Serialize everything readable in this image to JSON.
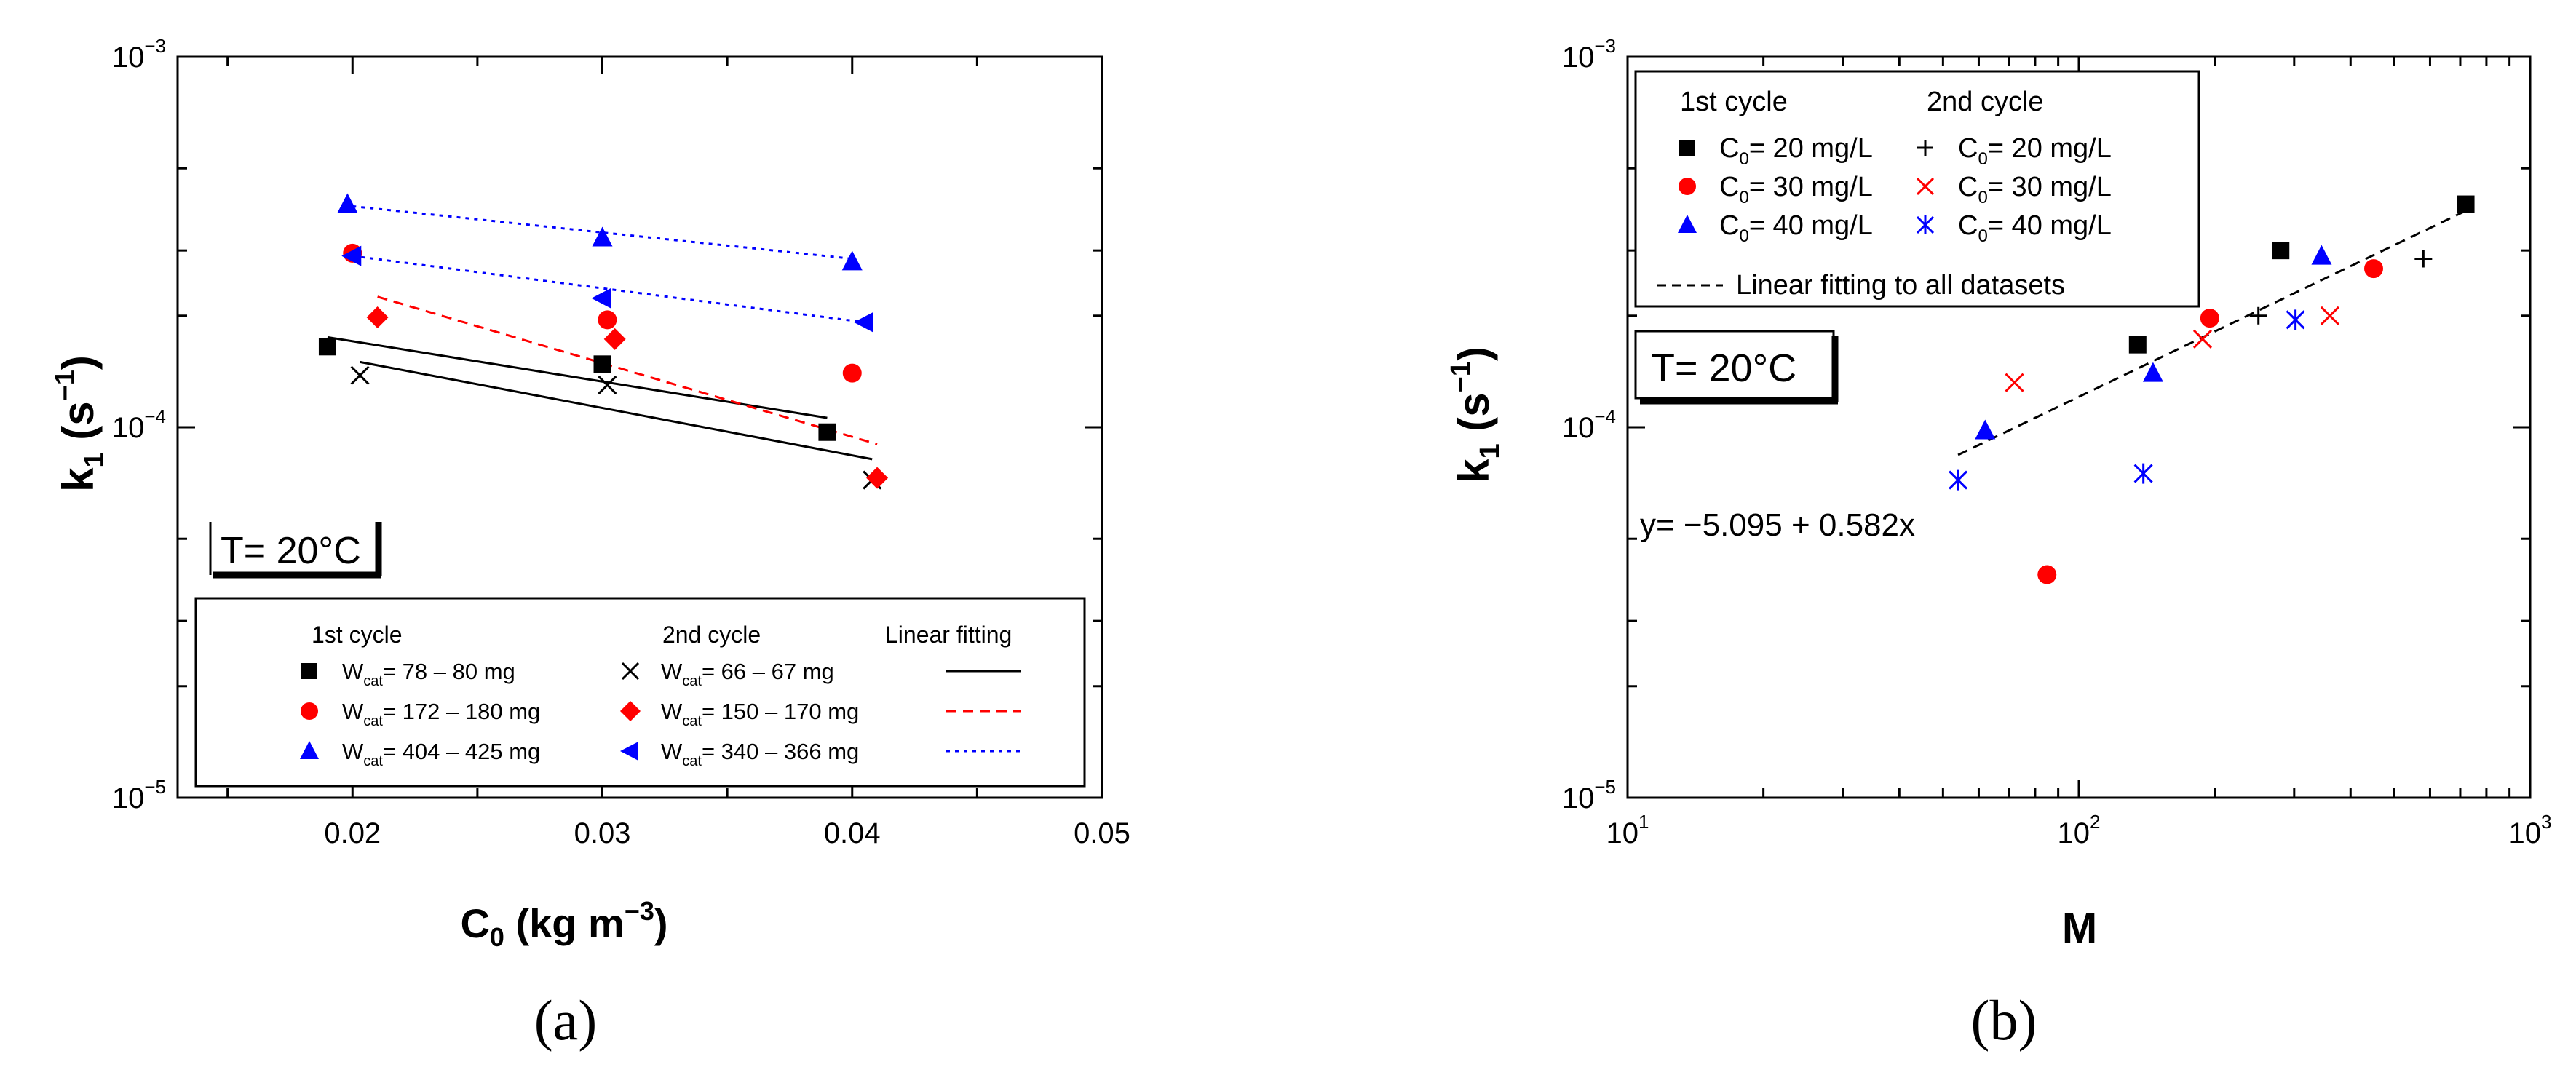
{
  "chart_data": [
    {
      "panel": "a",
      "caption": "(a)",
      "type": "scatter",
      "xscale": "linear",
      "yscale": "log",
      "xlabel_main": "C",
      "xlabel_sub": "0",
      "xlabel_rest": " (kg m",
      "xlabel_sup": "−3",
      "xlabel_end": ")",
      "ylabel_main": "k",
      "ylabel_sub": "1",
      "ylabel_rest": " (s",
      "ylabel_sup": "−1",
      "ylabel_end": ")",
      "xlim": [
        0.013,
        0.05
      ],
      "ylim": [
        1e-05,
        0.001
      ],
      "x_ticks": [
        {
          "v": 0.02,
          "label": "0.02"
        },
        {
          "v": 0.03,
          "label": "0.03"
        },
        {
          "v": 0.04,
          "label": "0.04"
        },
        {
          "v": 0.05,
          "label": "0.05"
        }
      ],
      "y_ticks": [
        {
          "v": 1e-05,
          "base": "10",
          "exp": "−5"
        },
        {
          "v": 0.0001,
          "base": "10",
          "exp": "−4"
        },
        {
          "v": 0.001,
          "base": "10",
          "exp": "−3"
        }
      ],
      "annotation": {
        "text": "T= 20°C"
      },
      "legend": {
        "location": "bottom",
        "headers": [
          "1st cycle",
          "2nd cycle",
          "Linear fitting"
        ],
        "rows": [
          {
            "left": "W",
            "left_sub": "cat",
            "left_rest": "= 78 – 80 mg",
            "right": "W",
            "right_sub": "cat",
            "right_rest": "= 66 – 67 mg"
          },
          {
            "left": "W",
            "left_sub": "cat",
            "left_rest": "= 172 – 180 mg",
            "right": "W",
            "right_sub": "cat",
            "right_rest": "= 150 – 170 mg"
          },
          {
            "left": "W",
            "left_sub": "cat",
            "left_rest": "= 404 – 425 mg",
            "right": "W",
            "right_sub": "cat",
            "right_rest": "= 340 – 366 mg"
          }
        ]
      },
      "series": [
        {
          "name": "1st cycle W_cat = 78 – 80 mg",
          "marker": "square",
          "color": "#000000",
          "x": [
            0.019,
            0.03,
            0.039
          ],
          "y": [
            0.000165,
            0.000148,
            9.7e-05
          ]
        },
        {
          "name": "2nd cycle W_cat = 66 – 67 mg",
          "marker": "x",
          "color": "#000000",
          "x": [
            0.0203,
            0.0302,
            0.0408
          ],
          "y": [
            0.000138,
            0.00013,
            7.2e-05
          ]
        },
        {
          "name": "1st cycle W_cat = 172 – 180 mg",
          "marker": "circle",
          "color": "#ff0000",
          "x": [
            0.02,
            0.0302,
            0.04
          ],
          "y": [
            0.000295,
            0.000195,
            0.00014
          ]
        },
        {
          "name": "2nd cycle W_cat = 150 – 170 mg",
          "marker": "diamond",
          "color": "#ff0000",
          "x": [
            0.021,
            0.0305,
            0.041
          ],
          "y": [
            0.000198,
            0.000173,
            7.3e-05
          ]
        },
        {
          "name": "1st cycle W_cat = 404 – 425 mg",
          "marker": "triangle-up",
          "color": "#0000ff",
          "x": [
            0.0198,
            0.03,
            0.04
          ],
          "y": [
            0.0004,
            0.000325,
            0.00028
          ]
        },
        {
          "name": "2nd cycle W_cat = 340 – 366 mg",
          "marker": "triangle-left",
          "color": "#0000ff",
          "x": [
            0.02,
            0.03,
            0.0405
          ],
          "y": [
            0.00029,
            0.000223,
            0.000192
          ]
        }
      ],
      "fit_lines": [
        {
          "color": "#000000",
          "style": "solid",
          "x": [
            0.019,
            0.039
          ],
          "y": [
            0.000175,
            0.000106
          ]
        },
        {
          "color": "#000000",
          "style": "solid",
          "x": [
            0.0203,
            0.0408
          ],
          "y": [
            0.00015,
            8.2e-05
          ]
        },
        {
          "color": "#ff0000",
          "style": "dashed",
          "x": [
            0.021,
            0.041
          ],
          "y": [
            0.000225,
            9e-05
          ]
        },
        {
          "color": "#0000ff",
          "style": "dotted",
          "x": [
            0.02,
            0.04
          ],
          "y": [
            0.000395,
            0.000285
          ]
        },
        {
          "color": "#0000ff",
          "style": "dotted",
          "x": [
            0.02,
            0.0405
          ],
          "y": [
            0.00029,
            0.000192
          ]
        }
      ]
    },
    {
      "panel": "b",
      "caption": "(b)",
      "type": "scatter",
      "xscale": "log",
      "yscale": "log",
      "xlabel": "M",
      "ylabel_main": "k",
      "ylabel_sub": "1",
      "ylabel_rest": " (s",
      "ylabel_sup": "−1",
      "ylabel_end": ")",
      "xlim": [
        10,
        1000
      ],
      "ylim": [
        1e-05,
        0.001
      ],
      "x_ticks": [
        {
          "v": 10,
          "base": "10",
          "exp": "1"
        },
        {
          "v": 100,
          "base": "10",
          "exp": "2"
        },
        {
          "v": 1000,
          "base": "10",
          "exp": "3"
        }
      ],
      "y_ticks": [
        {
          "v": 1e-05,
          "base": "10",
          "exp": "−5"
        },
        {
          "v": 0.0001,
          "base": "10",
          "exp": "−4"
        },
        {
          "v": 0.001,
          "base": "10",
          "exp": "−3"
        }
      ],
      "annotation": {
        "text": "T= 20°C"
      },
      "equation": "y= −5.095 + 0.582x",
      "legend": {
        "location": "top-left",
        "headers": [
          "1st cycle",
          "2nd cycle"
        ],
        "rows": [
          {
            "left": "C",
            "left_sub": "0",
            "left_rest": "= 20 mg/L",
            "right": "C",
            "right_sub": "0",
            "right_rest": "= 20 mg/L"
          },
          {
            "left": "C",
            "left_sub": "0",
            "left_rest": "= 30 mg/L",
            "right": "C",
            "right_sub": "0",
            "right_rest": "= 30 mg/L"
          },
          {
            "left": "C",
            "left_sub": "0",
            "left_rest": "= 40 mg/L",
            "right": "C",
            "right_sub": "0",
            "right_rest": "= 40 mg/L"
          }
        ],
        "fit_label": "Linear fitting to all datasets"
      },
      "series": [
        {
          "name": "1st cycle C0 = 20 mg/L",
          "marker": "square",
          "color": "#000000",
          "x": [
            135,
            280,
            720
          ],
          "y": [
            0.000167,
            0.0003,
            0.0004
          ]
        },
        {
          "name": "2nd cycle C0 = 20 mg/L",
          "marker": "plus",
          "color": "#000000",
          "x": [
            250,
            580
          ],
          "y": [
            0.0002,
            0.000285
          ]
        },
        {
          "name": "1st cycle C0 = 30 mg/L",
          "marker": "circle",
          "color": "#ff0000",
          "x": [
            85,
            195,
            450
          ],
          "y": [
            4e-05,
            0.000197,
            0.000268
          ]
        },
        {
          "name": "2nd cycle C0 = 30 mg/L",
          "marker": "x",
          "color": "#ff0000",
          "x": [
            72,
            188,
            360
          ],
          "y": [
            0.000132,
            0.000173,
            0.0002
          ]
        },
        {
          "name": "1st cycle C0 = 40 mg/L",
          "marker": "triangle-up",
          "color": "#0000ff",
          "x": [
            62,
            146,
            345
          ],
          "y": [
            9.8e-05,
            0.00014,
            0.00029
          ]
        },
        {
          "name": "2nd cycle C0 = 40 mg/L",
          "marker": "asterisk",
          "color": "#0000ff",
          "x": [
            54,
            139,
            302
          ],
          "y": [
            7.2e-05,
            7.5e-05,
            0.000195
          ]
        }
      ],
      "fit_line": {
        "color": "#000000",
        "style": "dashed",
        "x": [
          54,
          720
        ],
        "y": [
          8.42e-05,
          0.000384
        ]
      }
    }
  ]
}
